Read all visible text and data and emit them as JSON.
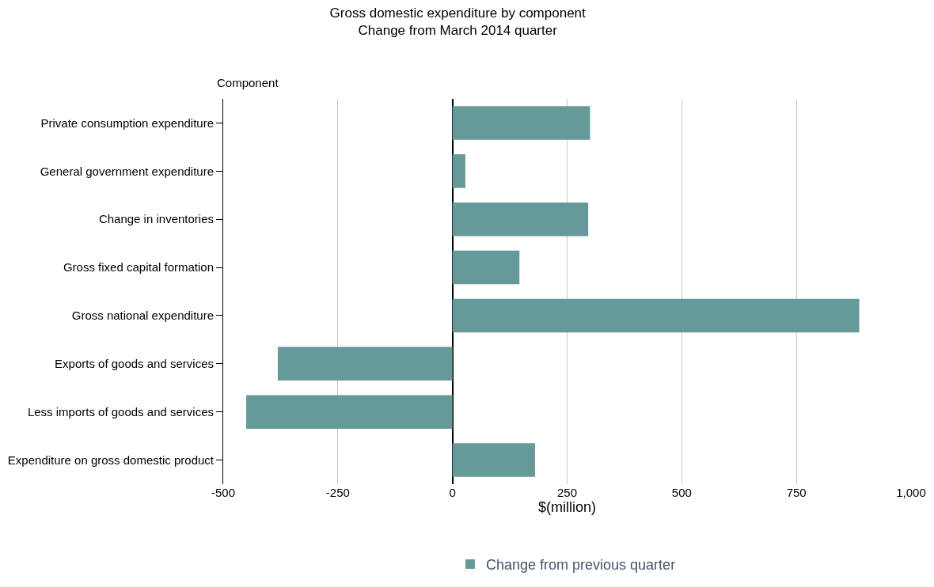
{
  "chart_data": {
    "type": "bar",
    "orientation": "horizontal",
    "title": "Gross domestic expenditure by component",
    "subtitle": "Change from March 2014 quarter",
    "xlabel": "$(million)",
    "ylabel": "Component",
    "categories": [
      "Private consumption expenditure",
      "General government expenditure",
      "Change in inventories",
      "Gross fixed capital formation",
      "Gross national expenditure",
      "Exports of goods and services",
      "Less imports of goods and services",
      "Expenditure on gross domestic product"
    ],
    "series": [
      {
        "name": "Change from previous quarter",
        "color": "#669999",
        "values": [
          300,
          28,
          296,
          146,
          887,
          -381,
          -450,
          180
        ]
      }
    ],
    "xlim": [
      -500,
      1000
    ],
    "xticks": [
      -500,
      -250,
      0,
      250,
      500,
      750,
      {
        "value": 1000,
        "label": "1,000"
      }
    ],
    "grid": "x",
    "legend": "bottom"
  }
}
